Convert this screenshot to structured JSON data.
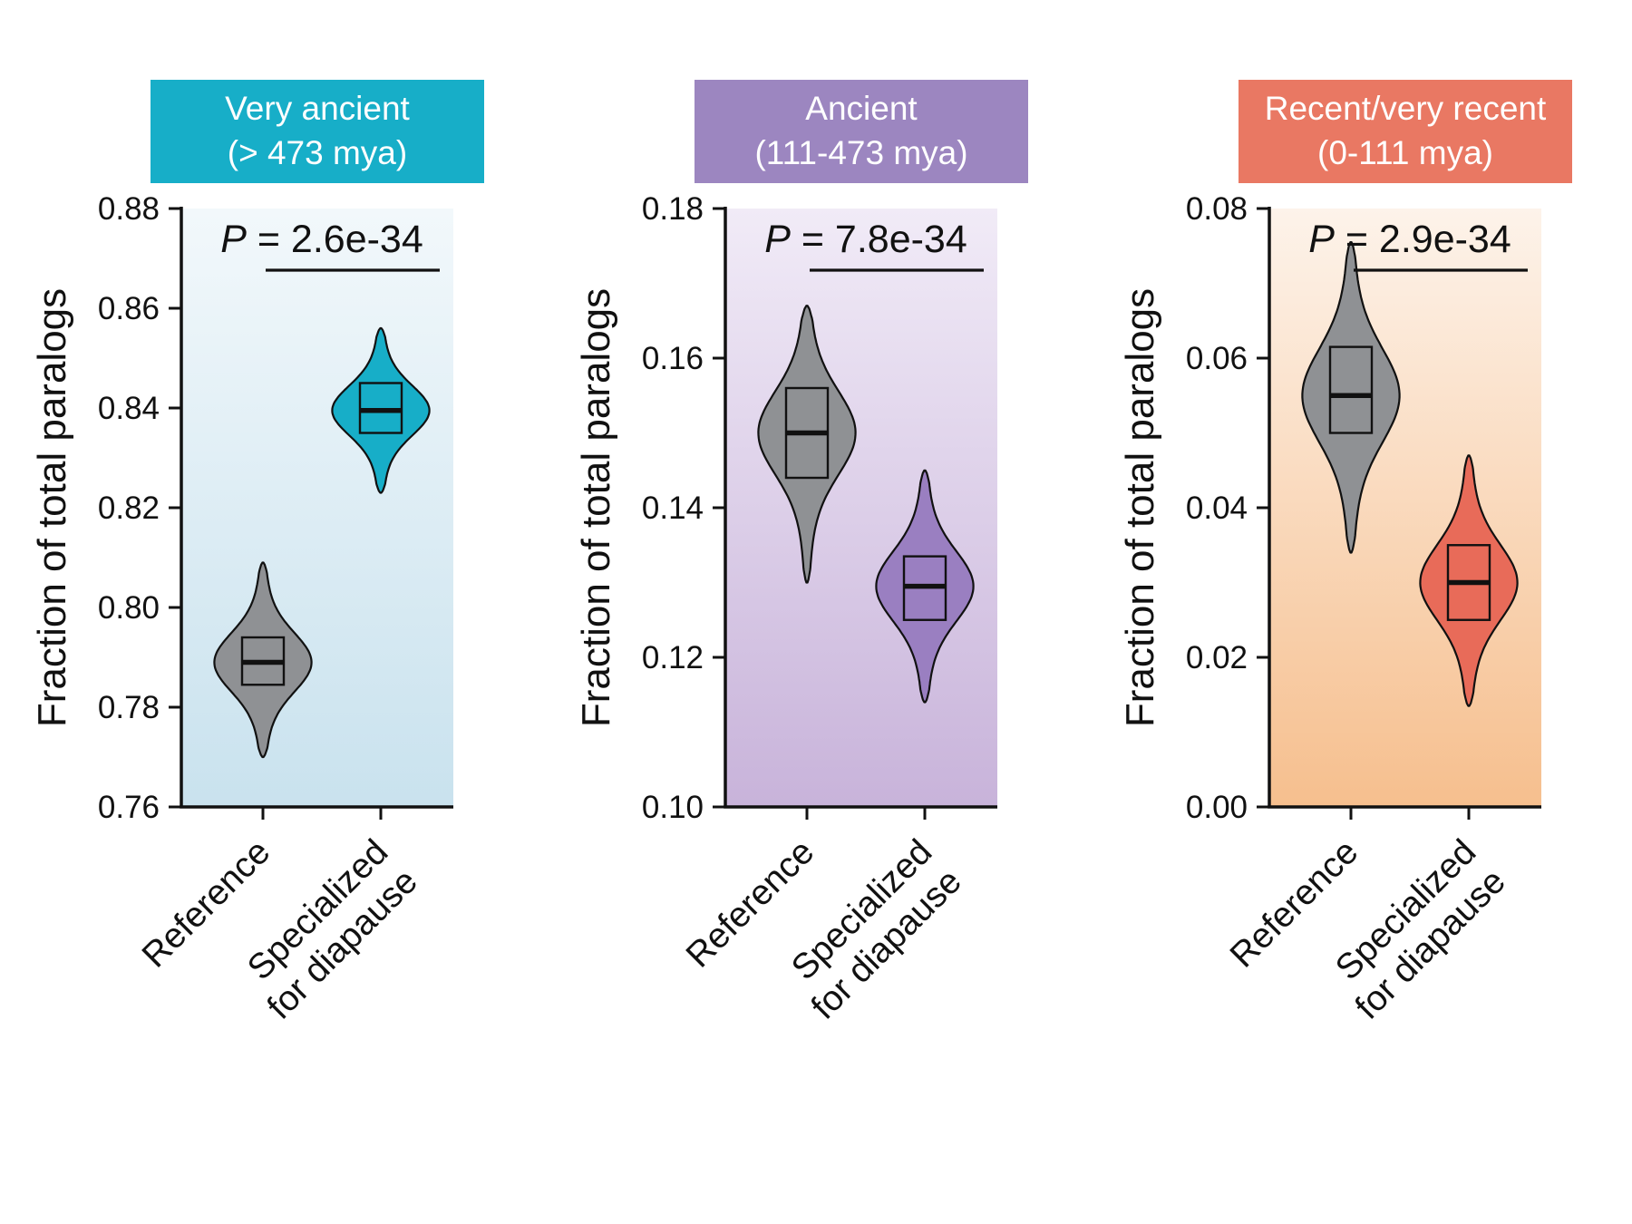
{
  "figure_name": "paralog-age-violin-figure",
  "shared": {
    "ylabel": "Fraction of total paralogs",
    "x_categories": [
      [
        "Reference"
      ],
      [
        "Specialized",
        "for diapause"
      ]
    ]
  },
  "chart_data": [
    {
      "type": "violin",
      "panel": "very-ancient",
      "header": {
        "title": "Very ancient",
        "subtitle": "(> 473 mya)",
        "color": "#17aec8",
        "text_color": "#ffffff"
      },
      "background_gradient": {
        "top": "#f2f8fb",
        "bottom": "#c9e2ee"
      },
      "ylabel": "Fraction of total paralogs",
      "ylim": [
        0.76,
        0.88
      ],
      "yticks": [
        {
          "value": 0.76,
          "label": "0.76"
        },
        {
          "value": 0.78,
          "label": "0.78"
        },
        {
          "value": 0.8,
          "label": "0.80"
        },
        {
          "value": 0.82,
          "label": "0.82"
        },
        {
          "value": 0.84,
          "label": "0.84"
        },
        {
          "value": 0.86,
          "label": "0.86"
        },
        {
          "value": 0.88,
          "label": "0.88"
        }
      ],
      "annotation": {
        "p_prefix": "P",
        "p_text": " = 2.6e-34"
      },
      "categories": [
        [
          "Reference"
        ],
        [
          "Specialized",
          "for diapause"
        ]
      ],
      "series": [
        {
          "name": "Reference",
          "fill": "#8f9194",
          "min": 0.77,
          "q1": 0.7845,
          "median": 0.789,
          "q3": 0.794,
          "max": 0.809
        },
        {
          "name": "Specialized for diapause",
          "fill": "#17aec8",
          "min": 0.823,
          "q1": 0.835,
          "median": 0.8395,
          "q3": 0.845,
          "max": 0.856
        }
      ]
    },
    {
      "type": "violin",
      "panel": "ancient",
      "header": {
        "title": "Ancient",
        "subtitle": "(111-473 mya)",
        "color": "#9c86c0",
        "text_color": "#ffffff"
      },
      "background_gradient": {
        "top": "#f1ebf7",
        "bottom": "#c8b3da"
      },
      "ylabel": "Fraction of total paralogs",
      "ylim": [
        0.1,
        0.18
      ],
      "yticks": [
        {
          "value": 0.1,
          "label": "0.10"
        },
        {
          "value": 0.12,
          "label": "0.12"
        },
        {
          "value": 0.14,
          "label": "0.14"
        },
        {
          "value": 0.16,
          "label": "0.16"
        },
        {
          "value": 0.18,
          "label": "0.18"
        }
      ],
      "annotation": {
        "p_prefix": "P",
        "p_text": " = 7.8e-34"
      },
      "categories": [
        [
          "Reference"
        ],
        [
          "Specialized",
          "for diapause"
        ]
      ],
      "series": [
        {
          "name": "Reference",
          "fill": "#8f9194",
          "min": 0.13,
          "q1": 0.144,
          "median": 0.15,
          "q3": 0.156,
          "max": 0.167
        },
        {
          "name": "Specialized for diapause",
          "fill": "#9a7fc1",
          "min": 0.114,
          "q1": 0.125,
          "median": 0.1295,
          "q3": 0.1335,
          "max": 0.145
        }
      ]
    },
    {
      "type": "violin",
      "panel": "recent",
      "header": {
        "title": "Recent/very recent",
        "subtitle": "(0-111 mya)",
        "color": "#e97863",
        "text_color": "#ffffff"
      },
      "background_gradient": {
        "top": "#fdf3ea",
        "bottom": "#f6bf8e"
      },
      "ylabel": "Fraction of total paralogs",
      "ylim": [
        0.0,
        0.08
      ],
      "yticks": [
        {
          "value": 0.0,
          "label": "0.00"
        },
        {
          "value": 0.02,
          "label": "0.02"
        },
        {
          "value": 0.04,
          "label": "0.04"
        },
        {
          "value": 0.06,
          "label": "0.06"
        },
        {
          "value": 0.08,
          "label": "0.08"
        }
      ],
      "annotation": {
        "p_prefix": "P",
        "p_text": " = 2.9e-34"
      },
      "categories": [
        [
          "Reference"
        ],
        [
          "Specialized",
          "for diapause"
        ]
      ],
      "series": [
        {
          "name": "Reference",
          "fill": "#8f9194",
          "min": 0.034,
          "q1": 0.05,
          "median": 0.055,
          "q3": 0.0615,
          "max": 0.0755
        },
        {
          "name": "Specialized for diapause",
          "fill": "#e86b59",
          "min": 0.0135,
          "q1": 0.025,
          "median": 0.03,
          "q3": 0.035,
          "max": 0.047
        }
      ]
    }
  ]
}
